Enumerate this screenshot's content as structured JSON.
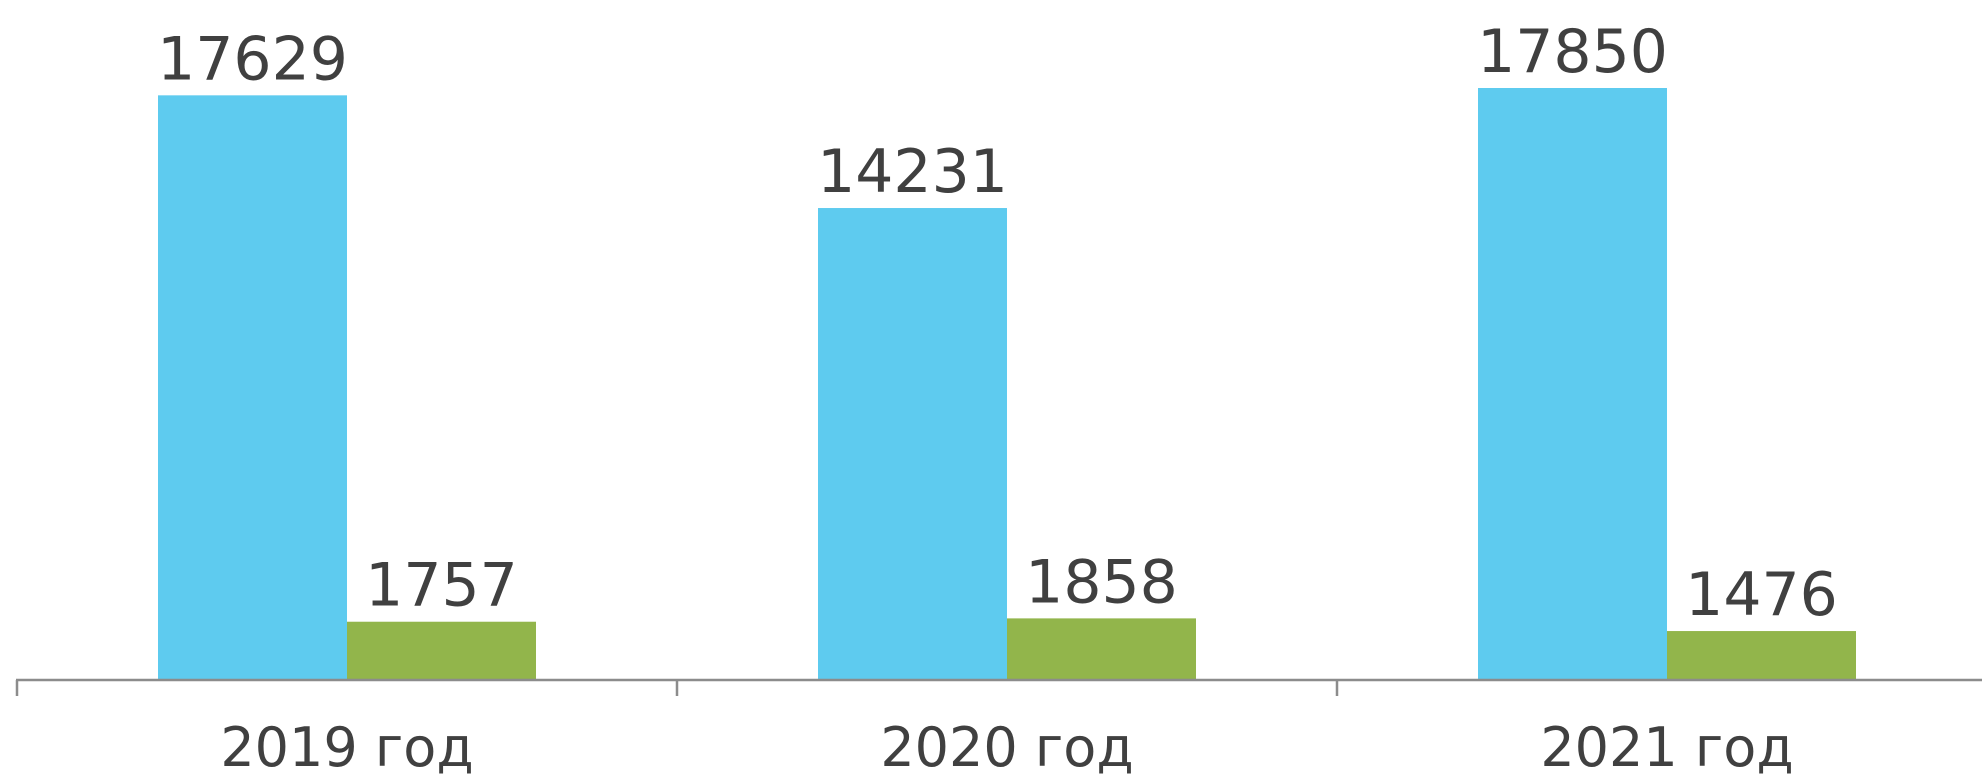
{
  "chart_data": {
    "type": "bar",
    "categories": [
      "2019 год",
      "2020 год",
      "2021 год"
    ],
    "series": [
      {
        "values": [
          17629,
          14231,
          17850
        ],
        "color": "#5ecbef"
      },
      {
        "values": [
          1757,
          1858,
          1476
        ],
        "color": "#92b54b"
      }
    ],
    "ylim": [
      0,
      17850
    ],
    "grid": false,
    "legend": "none",
    "axis_color": "#8c8c8c",
    "text_color": "#404040"
  }
}
